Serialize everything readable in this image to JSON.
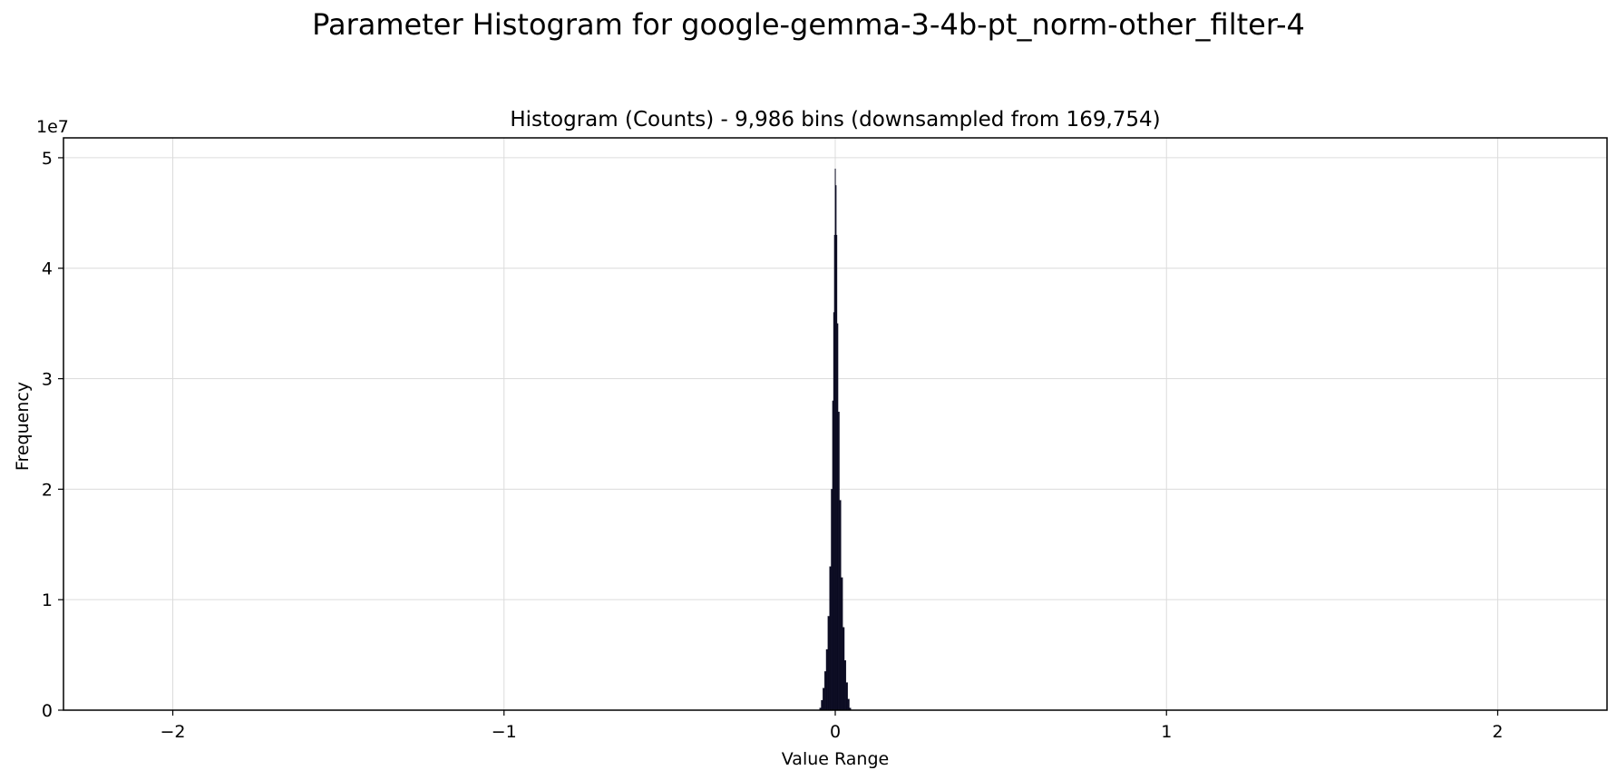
{
  "figure": {
    "suptitle": "Parameter Histogram for google-gemma-3-4b-pt_norm-other_filter-4"
  },
  "chart_data": {
    "type": "bar",
    "title": "Histogram (Counts) - 9,986 bins (downsampled from 169,754)",
    "xlabel": "Value Range",
    "ylabel": "Frequency",
    "y_offset_label": "1e7",
    "xlim": [
      -2.33,
      2.33
    ],
    "ylim": [
      0,
      51800000
    ],
    "xticks": [
      -2,
      -1,
      0,
      1,
      2
    ],
    "xtick_labels": [
      "−2",
      "−1",
      "0",
      "1",
      "2"
    ],
    "yticks": [
      0,
      10000000,
      20000000,
      30000000,
      40000000,
      50000000
    ],
    "ytick_labels": [
      "0",
      "1",
      "2",
      "3",
      "4",
      "5"
    ],
    "grid": true,
    "bar_color": "#0b0b22",
    "bins": {
      "x": [
        -0.045,
        -0.04,
        -0.035,
        -0.03,
        -0.025,
        -0.02,
        -0.015,
        -0.01,
        -0.007,
        -0.004,
        -0.002,
        0,
        0.002,
        0.004,
        0.007,
        0.01,
        0.015,
        0.02,
        0.025,
        0.03,
        0.035,
        0.04,
        0.045
      ],
      "values": [
        200000,
        900000,
        2000000,
        3500000,
        5500000,
        8500000,
        13000000,
        20000000,
        28000000,
        36000000,
        43000000,
        49000000,
        47500000,
        43000000,
        35000000,
        27000000,
        19000000,
        12000000,
        7500000,
        4500000,
        2500000,
        1000000,
        200000
      ]
    }
  }
}
